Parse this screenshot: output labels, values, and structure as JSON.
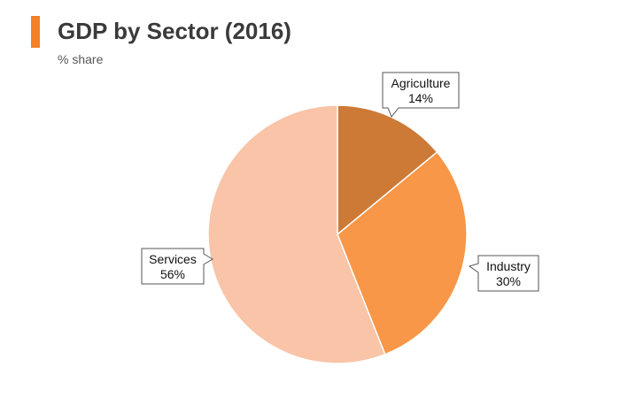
{
  "chart_data": {
    "type": "pie",
    "title": "GDP by Sector (2016)",
    "subtitle": "% share",
    "accent_color": "#f58025",
    "slices": [
      {
        "label": "Agriculture",
        "value": 14,
        "value_label": "14%",
        "color": "#cd7a37"
      },
      {
        "label": "Industry",
        "value": 30,
        "value_label": "30%",
        "color": "#f79747"
      },
      {
        "label": "Services",
        "value": 56,
        "value_label": "56%",
        "color": "#f9c4a8"
      }
    ]
  }
}
